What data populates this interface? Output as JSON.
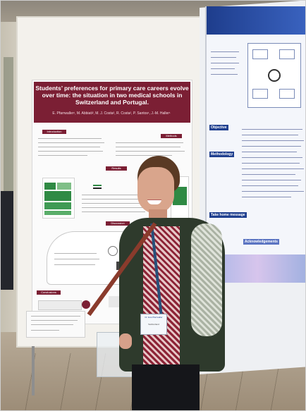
{
  "poster_left": {
    "title": "Students’ preferences for primary care careers evolve over time: the situation in two medical schools in Switzerland and Portugal.",
    "authors": "E. Pfarrwaller¹, M. Abbiati², M. J. Costa³, R. Costa², P. Santos¹, J.-M. Haller¹",
    "sections": {
      "introduction": "Introduction",
      "methods": "Methods",
      "results": "Results",
      "discussion": "Discussion",
      "conclusions": "Conclusions"
    }
  },
  "poster_right": {
    "labels": {
      "objective": "Objective",
      "methodology": "Methodology",
      "take_home": "Take home message",
      "acknowledgements": "Acknowledgements"
    }
  },
  "badge": {
    "name": "Dr. Eva Pfarrwaller",
    "affiliation": "Switzerland"
  },
  "colors": {
    "poster_maroon": "#7b1f34",
    "chart_green": "#2f8a44",
    "right_poster_blue": "#1f3f8f",
    "jacket": "#2e3a2c"
  }
}
